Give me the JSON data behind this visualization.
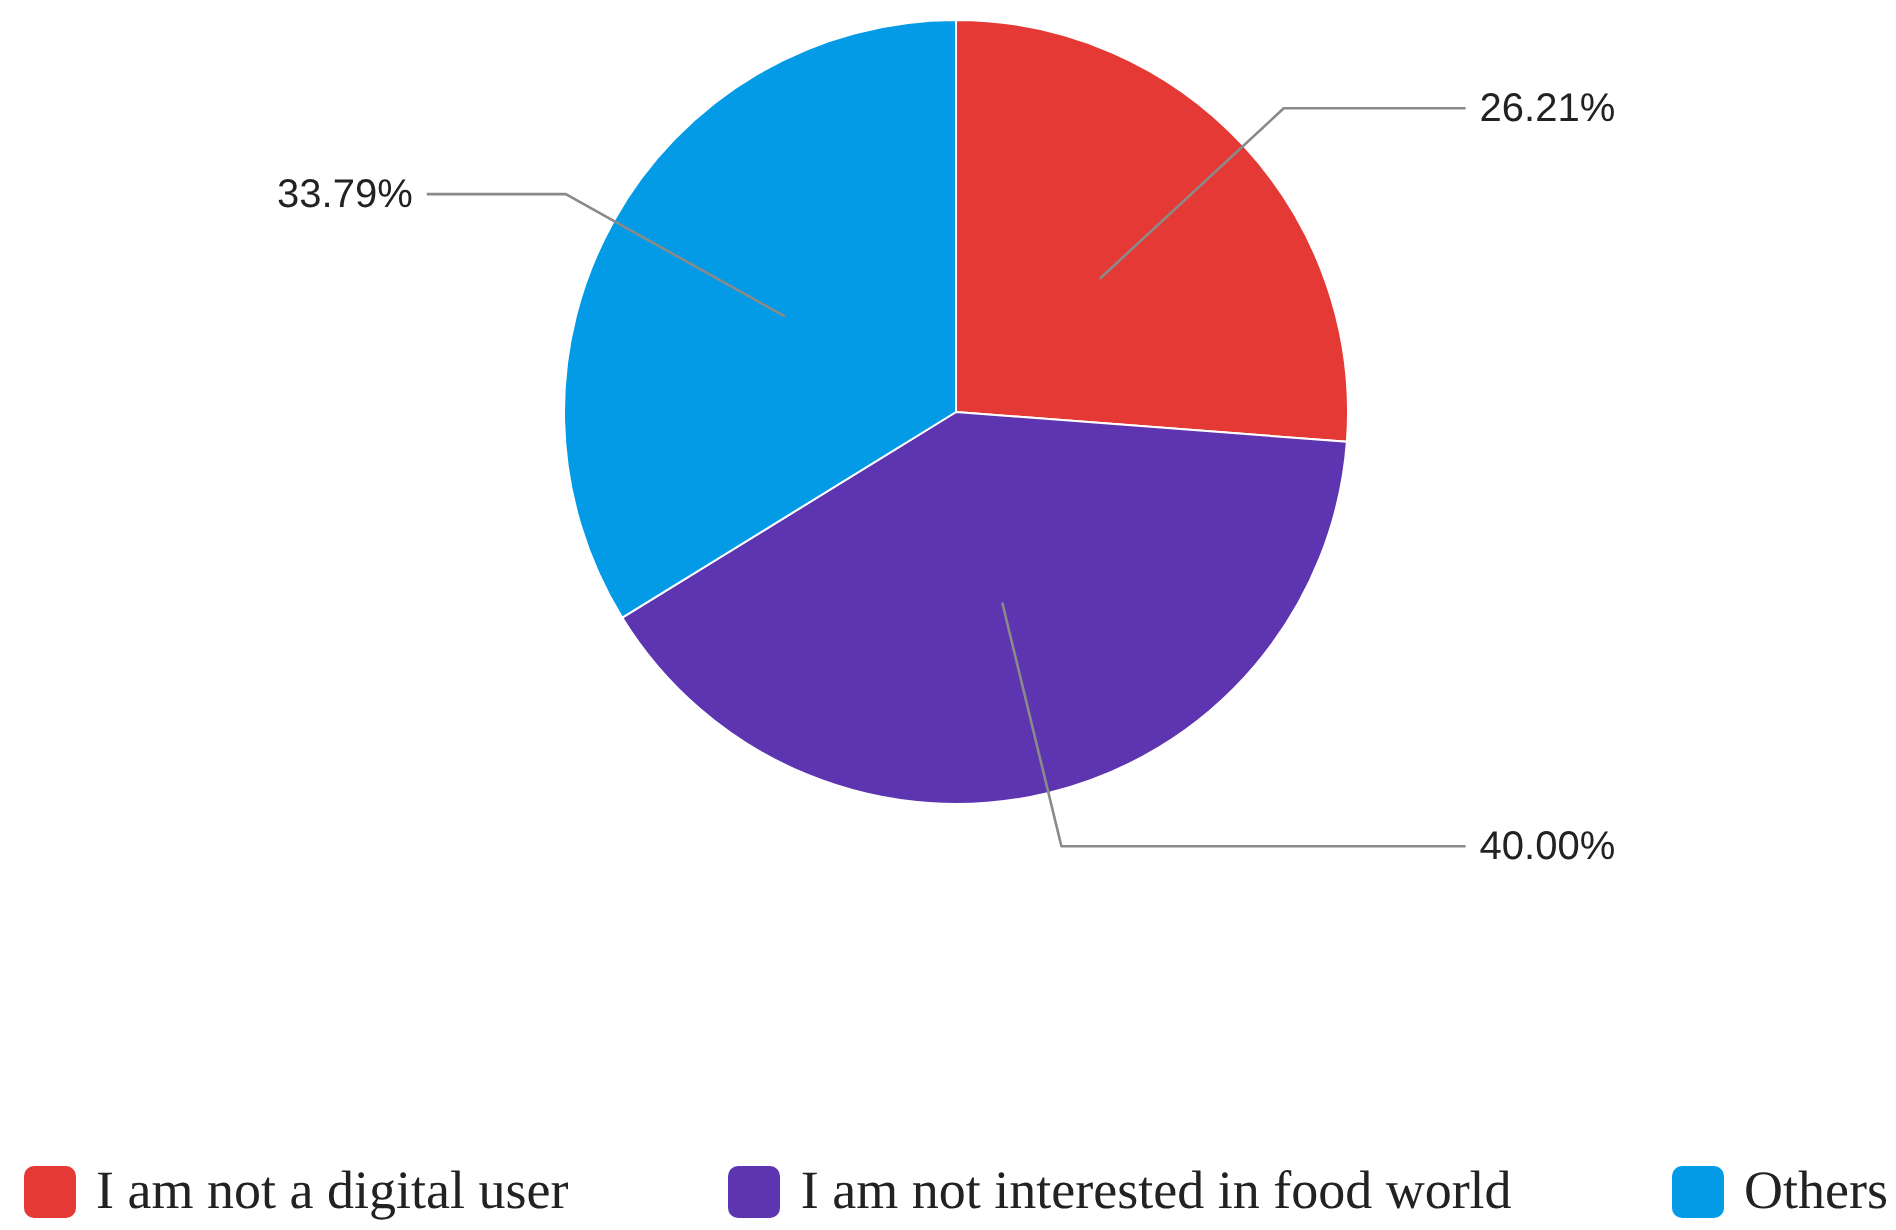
{
  "chart_data": {
    "type": "pie",
    "categories": [
      "I am not a digital user",
      "I am not interested in food world",
      "Others"
    ],
    "values": [
      26.21,
      40.0,
      33.79
    ],
    "colors": [
      "#e53935",
      "#5e35b1",
      "#039be5"
    ],
    "value_labels": [
      "26.21%",
      "40.00%",
      "33.79%"
    ],
    "legend": "bottom"
  }
}
